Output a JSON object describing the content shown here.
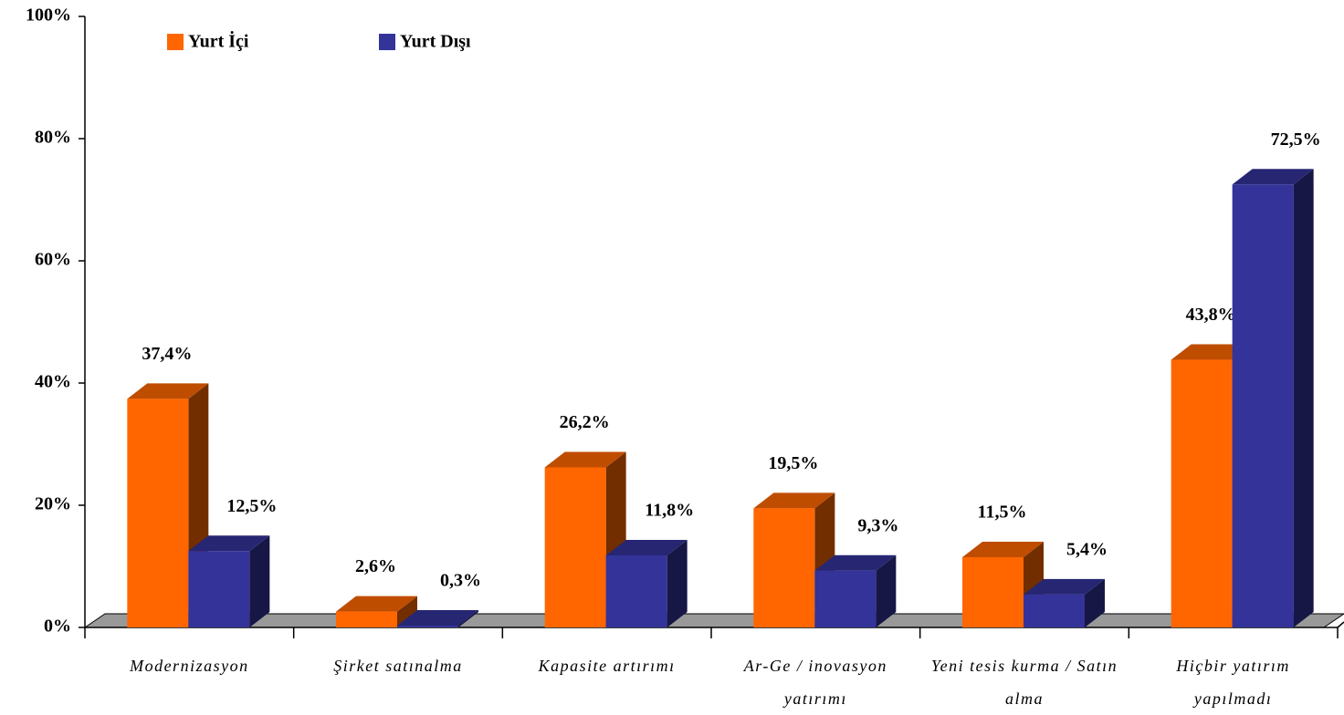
{
  "chart_data": {
    "type": "bar3d",
    "categories": [
      "Modernizasyon",
      "Şirket satınalma",
      "Kapasite artırımı",
      "Ar-Ge / inovasyon yatırımı",
      "Yeni tesis kurma / Satın alma",
      "Hiçbir yatırım yapılmadı"
    ],
    "series": [
      {
        "name": "Yurt İçi",
        "color": "#ff6600",
        "values": [
          37.4,
          2.6,
          26.2,
          19.5,
          11.5,
          43.8
        ],
        "value_labels": [
          "37,4%",
          "2,6%",
          "26,2%",
          "19,5%",
          "11,5%",
          "43,8%"
        ]
      },
      {
        "name": "Yurt Dışı",
        "color": "#333399",
        "values": [
          12.5,
          0.3,
          11.8,
          9.3,
          5.4,
          72.5
        ],
        "value_labels": [
          "12,5%",
          "0,3%",
          "11,8%",
          "9,3%",
          "5,4%",
          "72,5%"
        ]
      }
    ],
    "ylim": [
      0,
      100
    ],
    "yticks": [
      {
        "value": 0,
        "label": "0%"
      },
      {
        "value": 20,
        "label": "20%"
      },
      {
        "value": 40,
        "label": "40%"
      },
      {
        "value": 60,
        "label": "60%"
      },
      {
        "value": 80,
        "label": "80%"
      },
      {
        "value": 100,
        "label": "100%"
      }
    ],
    "grid": false,
    "legend": "top-left"
  }
}
